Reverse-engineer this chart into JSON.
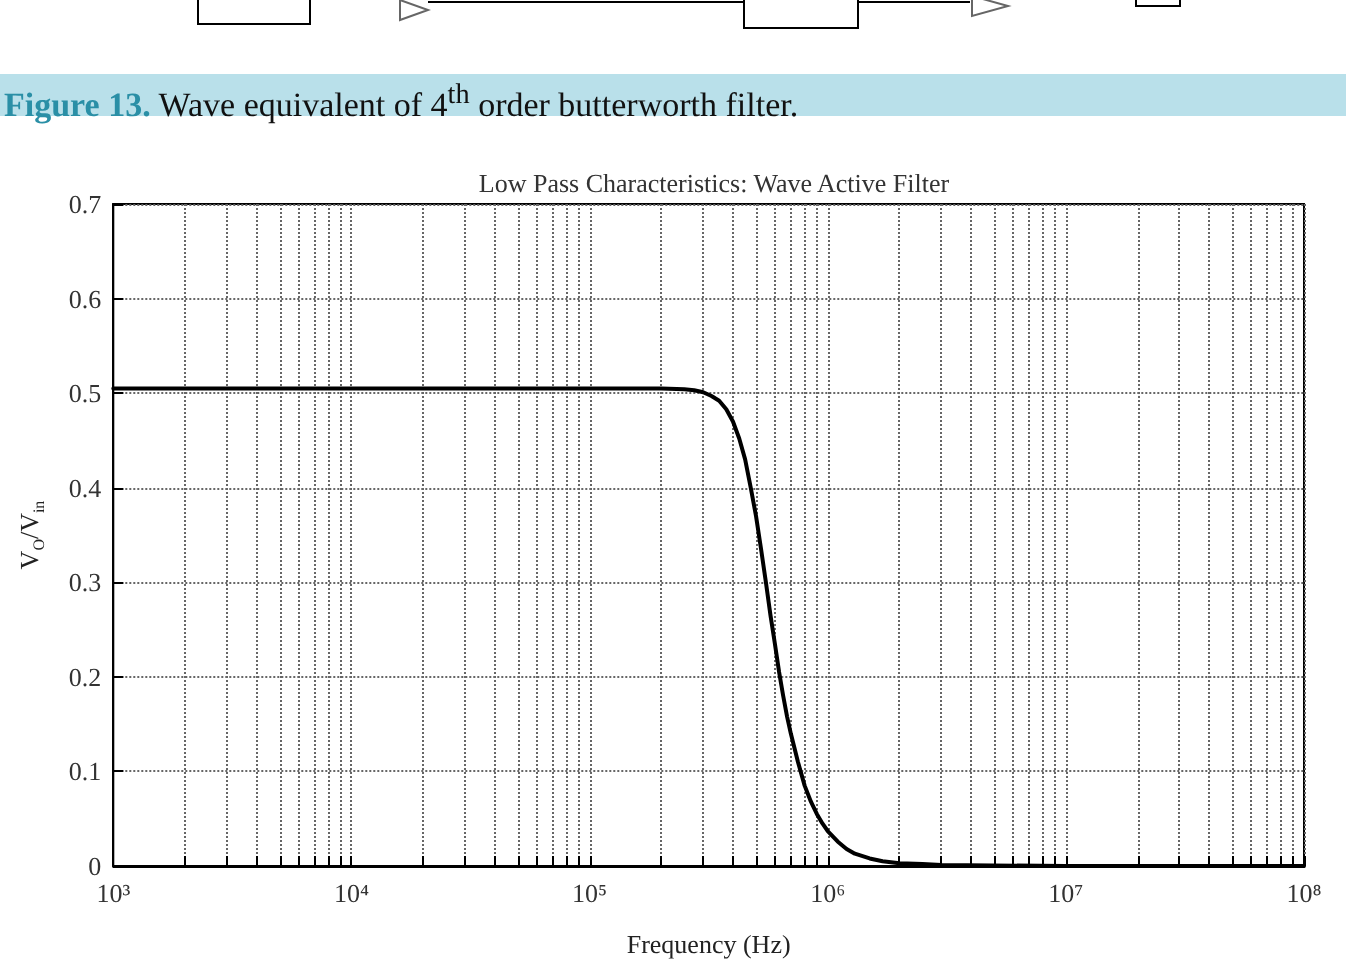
{
  "chart_data": {
    "type": "line",
    "title": "Low Pass Characteristics: Wave Active Filter",
    "xlabel": "Frequency (Hz)",
    "ylabel": "V$_{O}$/V$_{in}$",
    "annotations": [
      "Figure 13. Wave equivalent of 4$^{th}$ order butterworth filter."
    ],
    "x": [
      1000,
      10000,
      100000,
      200000,
      250000,
      275000,
      300000,
      325000,
      350000,
      375000,
      400000,
      425000,
      450000,
      475000,
      500000,
      525000,
      550000,
      575000,
      600000,
      625000,
      650000,
      675000,
      700000,
      750000,
      800000,
      850000,
      900000,
      950000,
      1000000,
      1100000,
      1200000,
      1300000,
      1500000,
      1700000,
      2000000,
      2500000,
      3000000,
      10000000,
      100000000
    ],
    "series": [
      {
        "color": "#000000",
        "values": [
          0.505,
          0.505,
          0.505,
          0.505,
          0.504,
          0.503,
          0.501,
          0.497,
          0.492,
          0.483,
          0.47,
          0.452,
          0.43,
          0.4,
          0.37,
          0.335,
          0.3,
          0.265,
          0.235,
          0.205,
          0.18,
          0.158,
          0.14,
          0.11,
          0.085,
          0.068,
          0.055,
          0.045,
          0.037,
          0.026,
          0.018,
          0.013,
          0.008,
          0.005,
          0.003,
          0.002,
          0.001,
          0,
          0
        ]
      }
    ],
    "xlim": [
      1000,
      100000000
    ],
    "ylim": [
      0,
      0.7
    ],
    "xticks": [
      {
        "value": 1000,
        "label": "10³"
      },
      {
        "value": 2000,
        "label": null
      },
      {
        "value": 3000,
        "label": null
      },
      {
        "value": 4000,
        "label": null
      },
      {
        "value": 5000,
        "label": null
      },
      {
        "value": 6000,
        "label": null
      },
      {
        "value": 7000,
        "label": null
      },
      {
        "value": 8000,
        "label": null
      },
      {
        "value": 9000,
        "label": null
      },
      {
        "value": 10000,
        "label": "10⁴"
      },
      {
        "value": 20000,
        "label": null
      },
      {
        "value": 30000,
        "label": null
      },
      {
        "value": 40000,
        "label": null
      },
      {
        "value": 50000,
        "label": null
      },
      {
        "value": 60000,
        "label": null
      },
      {
        "value": 70000,
        "label": null
      },
      {
        "value": 80000,
        "label": null
      },
      {
        "value": 90000,
        "label": null
      },
      {
        "value": 100000,
        "label": "10⁵"
      },
      {
        "value": 200000,
        "label": null
      },
      {
        "value": 300000,
        "label": null
      },
      {
        "value": 400000,
        "label": null
      },
      {
        "value": 500000,
        "label": null
      },
      {
        "value": 600000,
        "label": null
      },
      {
        "value": 700000,
        "label": null
      },
      {
        "value": 800000,
        "label": null
      },
      {
        "value": 900000,
        "label": null
      },
      {
        "value": 1000000,
        "label": "10⁶"
      },
      {
        "value": 2000000,
        "label": null
      },
      {
        "value": 3000000,
        "label": null
      },
      {
        "value": 4000000,
        "label": null
      },
      {
        "value": 5000000,
        "label": null
      },
      {
        "value": 6000000,
        "label": null
      },
      {
        "value": 7000000,
        "label": null
      },
      {
        "value": 8000000,
        "label": null
      },
      {
        "value": 9000000,
        "label": null
      },
      {
        "value": 10000000,
        "label": "10⁷"
      },
      {
        "value": 20000000,
        "label": null
      },
      {
        "value": 30000000,
        "label": null
      },
      {
        "value": 40000000,
        "label": null
      },
      {
        "value": 50000000,
        "label": null
      },
      {
        "value": 60000000,
        "label": null
      },
      {
        "value": 70000000,
        "label": null
      },
      {
        "value": 80000000,
        "label": null
      },
      {
        "value": 90000000,
        "label": null
      },
      {
        "value": 100000000,
        "label": "10⁸"
      }
    ],
    "yticks": [
      0,
      0.1,
      0.2,
      0.3,
      0.4,
      0.5,
      0.6,
      0.7
    ],
    "log": "x",
    "grid": true,
    "marker": "none",
    "line_style": "solid"
  }
}
